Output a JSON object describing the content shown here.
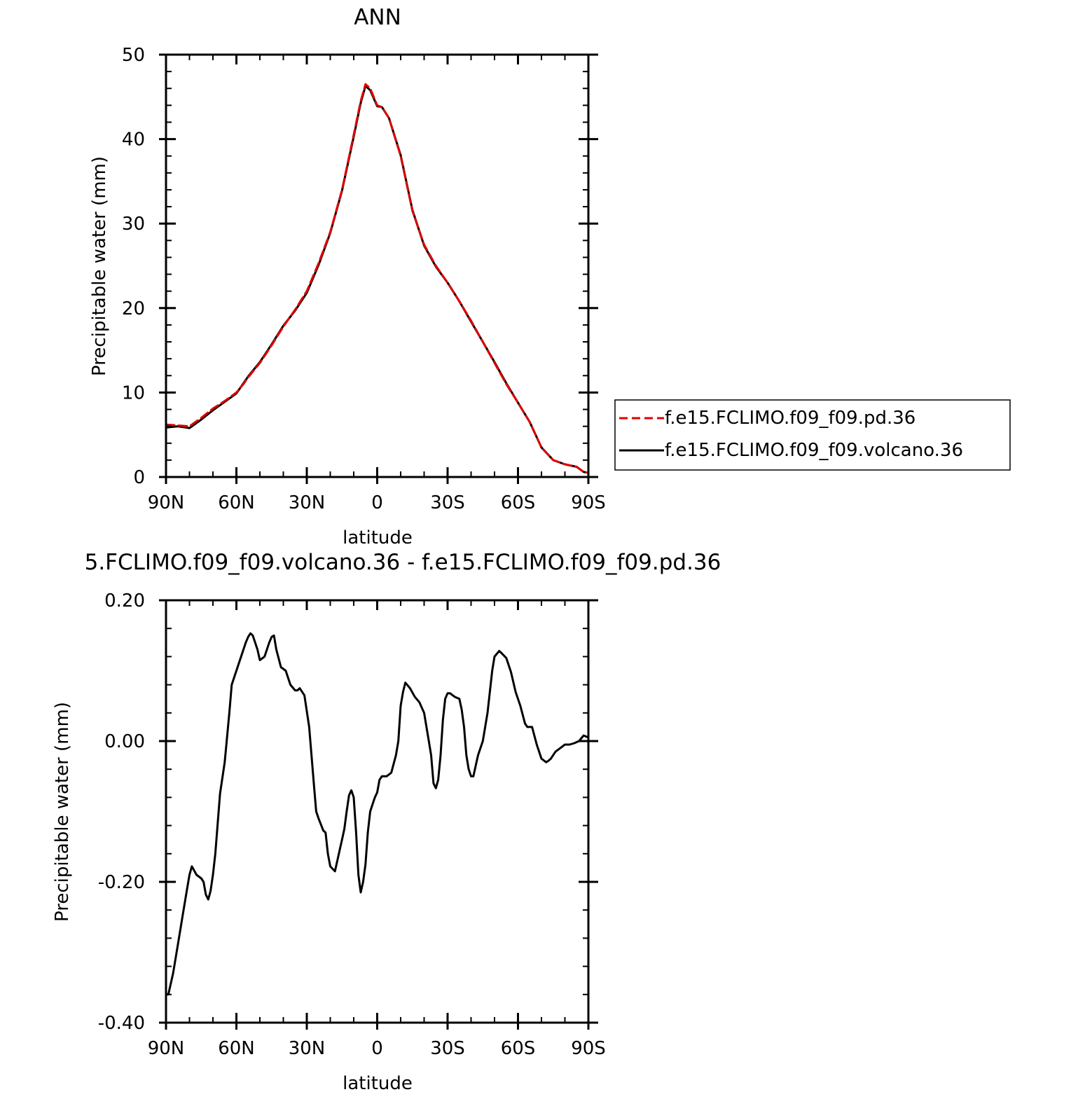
{
  "chart_data": [
    {
      "type": "line",
      "title": "ANN",
      "xlabel": "latitude",
      "ylabel": "Precipitable water (mm)",
      "xlim": [
        -90,
        90
      ],
      "ylim": [
        0,
        50
      ],
      "x_direction": "90N on left to 90S on right",
      "xticks": [
        -90,
        -60,
        -30,
        0,
        30,
        60,
        90
      ],
      "xtick_labels": [
        "90N",
        "60N",
        "30N",
        "0",
        "30S",
        "60S",
        "90S"
      ],
      "yticks": [
        0,
        10,
        20,
        30,
        40,
        50
      ],
      "ytick_labels": [
        "0",
        "10",
        "20",
        "30",
        "40",
        "50"
      ],
      "legend_placement": "right of plot, lower",
      "series": [
        {
          "name": "f.e15.FCLIMO.f09_f09.pd.36",
          "color": "#e00000",
          "dash": "dashed",
          "x": [
            -90,
            -85,
            -80,
            -75,
            -70,
            -65,
            -60,
            -57,
            -55,
            -50,
            -45,
            -40,
            -35,
            -30,
            -25,
            -20,
            -15,
            -10,
            -7,
            -5,
            -3,
            0,
            2,
            5,
            10,
            15,
            20,
            25,
            30,
            35,
            40,
            45,
            50,
            55,
            60,
            65,
            70,
            75,
            80,
            85,
            88,
            90
          ],
          "y": [
            6.2,
            6.1,
            6.0,
            7.0,
            8.1,
            9.0,
            10.0,
            11.0,
            11.8,
            13.5,
            15.6,
            17.8,
            19.8,
            22.0,
            25.3,
            29.0,
            34.0,
            40.5,
            44.5,
            46.5,
            46.0,
            44.0,
            43.8,
            42.5,
            38.0,
            31.5,
            27.5,
            25.0,
            23.0,
            20.8,
            18.5,
            16.0,
            13.5,
            11.0,
            8.8,
            6.5,
            3.5,
            2.0,
            1.5,
            1.2,
            0.6,
            0.5
          ]
        },
        {
          "name": "f.e15.FCLIMO.f09_f09.volcano.36",
          "color": "#000000",
          "dash": "solid",
          "x": [
            -90,
            -85,
            -80,
            -75,
            -70,
            -65,
            -60,
            -57,
            -55,
            -50,
            -45,
            -40,
            -35,
            -30,
            -25,
            -20,
            -15,
            -10,
            -7,
            -5,
            -3,
            0,
            2,
            5,
            10,
            15,
            20,
            25,
            30,
            35,
            40,
            45,
            50,
            55,
            60,
            65,
            70,
            75,
            80,
            85,
            88,
            90
          ],
          "y": [
            5.85,
            6.0,
            5.8,
            6.8,
            7.9,
            8.9,
            9.9,
            11.1,
            11.9,
            13.6,
            15.7,
            17.9,
            19.7,
            21.8,
            25.1,
            28.9,
            33.9,
            40.3,
            44.3,
            46.3,
            45.8,
            43.9,
            43.8,
            42.5,
            38.1,
            31.6,
            27.4,
            24.9,
            23.0,
            20.8,
            18.4,
            16.0,
            13.6,
            11.1,
            8.8,
            6.5,
            3.5,
            2.0,
            1.5,
            1.2,
            0.6,
            0.5
          ]
        }
      ]
    },
    {
      "type": "line",
      "title": "5.FCLIMO.f09_f09.volcano.36 - f.e15.FCLIMO.f09_f09.pd.36",
      "xlabel": "latitude",
      "ylabel": "Precipitable water (mm)",
      "xlim": [
        -90,
        90
      ],
      "ylim": [
        -0.4,
        0.2
      ],
      "x_direction": "90N on left to 90S on right",
      "xticks": [
        -90,
        -60,
        -30,
        0,
        30,
        60,
        90
      ],
      "xtick_labels": [
        "90N",
        "60N",
        "30N",
        "0",
        "30S",
        "60S",
        "90S"
      ],
      "yticks": [
        -0.4,
        -0.2,
        0.0,
        0.2
      ],
      "ytick_labels": [
        "-0.40",
        "-0.20",
        "0.00",
        "0.20"
      ],
      "series": [
        {
          "color": "#000000",
          "dash": "solid",
          "x": [
            -90,
            -89,
            -87,
            -85,
            -83,
            -81,
            -80,
            -79,
            -77,
            -75,
            -74,
            -73,
            -72,
            -71,
            -70,
            -69,
            -67,
            -65,
            -63,
            -62,
            -60,
            -58,
            -56,
            -55,
            -54,
            -53,
            -51,
            -50,
            -48,
            -46,
            -45,
            -44,
            -43,
            -41,
            -39,
            -37,
            -35,
            -34,
            -33,
            -31,
            -29,
            -28,
            -27,
            -26,
            -25,
            -23,
            -22,
            -21,
            -20,
            -18,
            -16,
            -15,
            -14,
            -13,
            -12,
            -11,
            -10,
            -9,
            -8,
            -7,
            -6,
            -5,
            -4,
            -3,
            -2,
            -1,
            0,
            1,
            2,
            4,
            6,
            8,
            9,
            10,
            11,
            12,
            14,
            16,
            18,
            20,
            22,
            23,
            24,
            25,
            26,
            27,
            28,
            29,
            30,
            31,
            33,
            35,
            36,
            37,
            38,
            39,
            40,
            41,
            43,
            45,
            47,
            49,
            50,
            52,
            53,
            55,
            57,
            59,
            61,
            63,
            64,
            66,
            68,
            70,
            72,
            73,
            74,
            76,
            78,
            80,
            82,
            84,
            86,
            88,
            90
          ],
          "y": [
            -0.36,
            -0.36,
            -0.33,
            -0.29,
            -0.25,
            -0.21,
            -0.19,
            -0.178,
            -0.19,
            -0.195,
            -0.2,
            -0.218,
            -0.225,
            -0.213,
            -0.19,
            -0.16,
            -0.075,
            -0.03,
            0.04,
            0.08,
            0.1,
            0.12,
            0.14,
            0.148,
            0.153,
            0.15,
            0.13,
            0.115,
            0.12,
            0.14,
            0.148,
            0.15,
            0.13,
            0.105,
            0.1,
            0.08,
            0.072,
            0.072,
            0.075,
            0.065,
            0.02,
            -0.02,
            -0.06,
            -0.1,
            -0.11,
            -0.127,
            -0.13,
            -0.16,
            -0.178,
            -0.185,
            -0.155,
            -0.14,
            -0.125,
            -0.1,
            -0.077,
            -0.07,
            -0.08,
            -0.13,
            -0.19,
            -0.215,
            -0.2,
            -0.175,
            -0.13,
            -0.1,
            -0.09,
            -0.08,
            -0.073,
            -0.055,
            -0.05,
            -0.05,
            -0.045,
            -0.02,
            0.0,
            0.05,
            0.07,
            0.083,
            0.075,
            0.063,
            0.055,
            0.04,
            0.0,
            -0.02,
            -0.06,
            -0.067,
            -0.055,
            -0.02,
            0.03,
            0.06,
            0.068,
            0.068,
            0.063,
            0.06,
            0.045,
            0.02,
            -0.02,
            -0.04,
            -0.05,
            -0.05,
            -0.02,
            0.0,
            0.04,
            0.1,
            0.12,
            0.128,
            0.125,
            0.118,
            0.098,
            0.07,
            0.05,
            0.025,
            0.02,
            0.02,
            -0.005,
            -0.025,
            -0.03,
            -0.028,
            -0.025,
            -0.015,
            -0.01,
            -0.005,
            -0.005,
            -0.003,
            0.0,
            0.008,
            0.005
          ]
        }
      ]
    }
  ]
}
